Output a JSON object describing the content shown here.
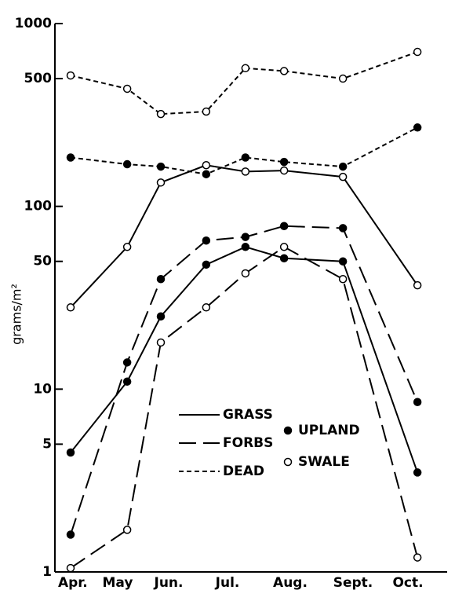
{
  "chart_data": {
    "type": "line",
    "ylabel": "grams/m²",
    "log_y": true,
    "xlim": [
      0,
      7
    ],
    "ylim": [
      1,
      1000
    ],
    "yticks": [
      1,
      5,
      10,
      50,
      100,
      500,
      1000
    ],
    "xticks": [
      {
        "value": 0.32,
        "label": "Apr."
      },
      {
        "value": 1.12,
        "label": "May"
      },
      {
        "value": 2.03,
        "label": "Jun."
      },
      {
        "value": 3.08,
        "label": "Jul."
      },
      {
        "value": 4.2,
        "label": "Aug."
      },
      {
        "value": 5.32,
        "label": "Sept."
      },
      {
        "value": 6.3,
        "label": "Oct."
      }
    ],
    "x": [
      0.28,
      1.29,
      1.89,
      2.7,
      3.4,
      4.09,
      5.14,
      6.47
    ],
    "line_styles": [
      {
        "label": "GRASS",
        "dash": "none"
      },
      {
        "label": "FORBS",
        "dash": "22 9"
      },
      {
        "label": "DEAD",
        "dash": "6 4"
      }
    ],
    "markers": [
      {
        "label": "UPLAND",
        "fill": "#000"
      },
      {
        "label": "SWALE",
        "fill": "#fff"
      }
    ],
    "color": "#000",
    "series": [
      {
        "style": 0,
        "marker": 0,
        "values": [
          4.5,
          11,
          25,
          48,
          60,
          52,
          50,
          3.5
        ]
      },
      {
        "style": 0,
        "marker": 1,
        "values": [
          28,
          60,
          135,
          168,
          155,
          157,
          145,
          37
        ]
      },
      {
        "style": 1,
        "marker": 0,
        "values": [
          1.6,
          14,
          40,
          65,
          68,
          78,
          76,
          8.5
        ]
      },
      {
        "style": 1,
        "marker": 1,
        "values": [
          1.05,
          1.7,
          18,
          28,
          43,
          60,
          40,
          1.2
        ]
      },
      {
        "style": 2,
        "marker": 0,
        "values": [
          185,
          170,
          165,
          150,
          185,
          175,
          165,
          270
        ]
      },
      {
        "style": 2,
        "marker": 1,
        "values": [
          520,
          440,
          320,
          330,
          570,
          550,
          500,
          700
        ]
      }
    ]
  }
}
